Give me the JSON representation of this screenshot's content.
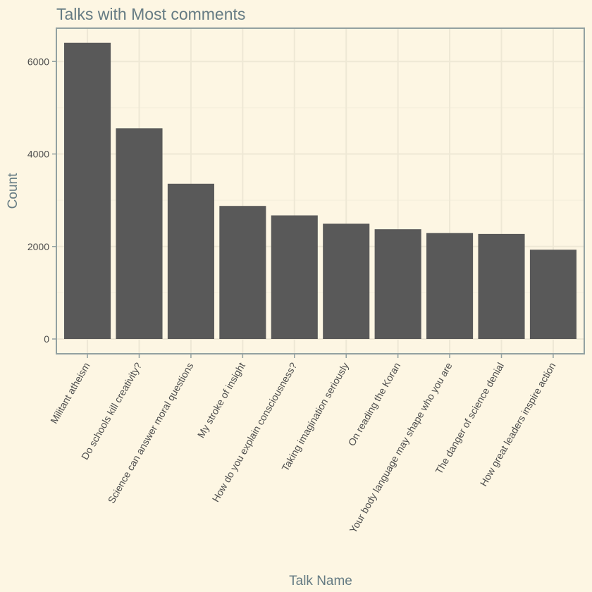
{
  "chart_data": {
    "type": "bar",
    "title": "Talks with Most comments",
    "xlabel": "Talk Name",
    "ylabel": "Count",
    "categories": [
      "Militant atheism",
      "Do schools kill creativity?",
      "Science can answer moral questions",
      "My stroke of insight",
      "How do you explain consciousness?",
      "Taking imagination seriously",
      "On reading the Koran",
      "Your body language may shape who you are",
      "The danger of science denial",
      "How great leaders inspire action"
    ],
    "values": [
      6404,
      4554,
      3356,
      2877,
      2673,
      2492,
      2374,
      2290,
      2272,
      1930
    ],
    "ylim": [
      -320,
      6720
    ],
    "yticks": [
      0,
      2000,
      4000,
      6000
    ],
    "ytick_labels": [
      "0",
      "2000",
      "4000",
      "6000"
    ],
    "grid": true,
    "legend": "none"
  },
  "colors": {
    "background": "#FDF6E3",
    "bar": "#595959",
    "grid_major": "#EEE8D5",
    "grid_minor": "#F4EEDC",
    "panel_border": "#93A1A1",
    "title": "#657B83",
    "tick_text": "#4D4D4D"
  }
}
